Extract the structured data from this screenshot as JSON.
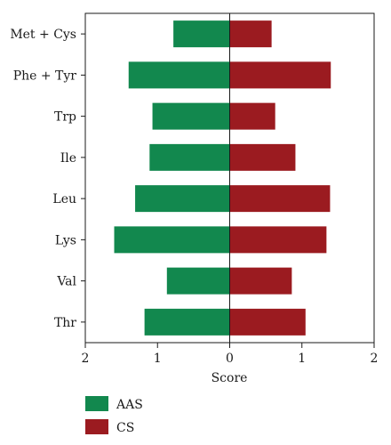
{
  "chart_data": {
    "type": "bar",
    "orientation": "horizontal-diverging",
    "categories": [
      "Met + Cys",
      "Phe + Tyr",
      "Trp",
      "Ile",
      "Leu",
      "Lys",
      "Val",
      "Thr"
    ],
    "series": [
      {
        "name": "AAS",
        "color": "#12884e",
        "direction": "left",
        "values": [
          0.78,
          1.4,
          1.07,
          1.11,
          1.31,
          1.6,
          0.87,
          1.18
        ]
      },
      {
        "name": "CS",
        "color": "#9b1b20",
        "direction": "right",
        "values": [
          0.58,
          1.4,
          0.63,
          0.91,
          1.39,
          1.34,
          0.86,
          1.05
        ]
      }
    ],
    "xlabel": "Score",
    "xlim": [
      -2,
      2
    ],
    "ticks": [
      {
        "value": -2,
        "label": "2"
      },
      {
        "value": -1,
        "label": "1"
      },
      {
        "value": 0,
        "label": "0"
      },
      {
        "value": 1,
        "label": "1"
      },
      {
        "value": 2,
        "label": "2"
      }
    ],
    "grid": false,
    "legend_position": "bottom-left"
  }
}
